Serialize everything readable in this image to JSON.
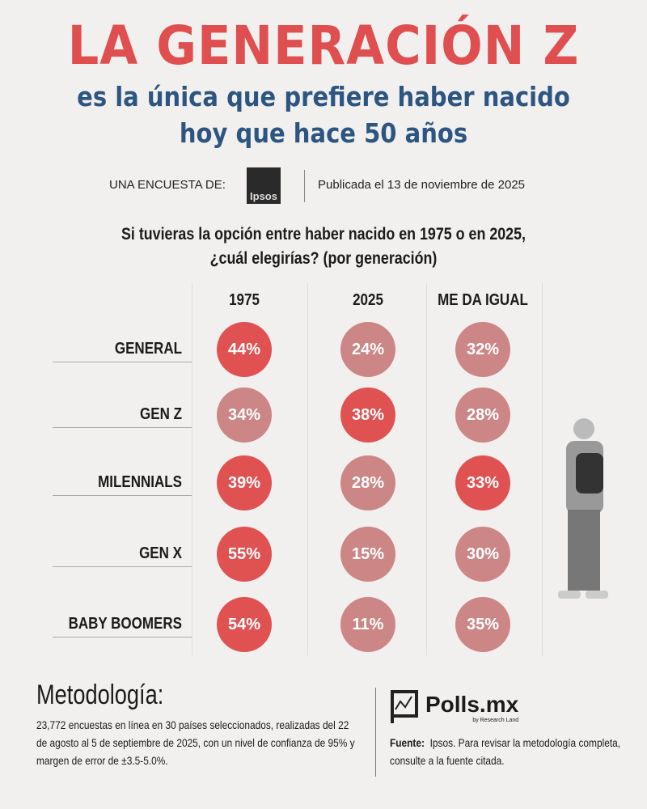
{
  "header": {
    "title": "LA GENERACIÓN Z",
    "subtitle_line1": "es la única que prefiere haber nacido",
    "subtitle_line2": "hoy que hace 50 años",
    "survey_by": "UNA ENCUESTA DE:",
    "survey_logo": "Ipsos",
    "published": "Publicada el 13 de noviembre de 2025"
  },
  "chart_data": {
    "type": "table",
    "title": "Si tuvieras la opción entre haber nacido en 1975 o en 2025, ¿cuál elegirías? (por generación)",
    "title_line1": "Si tuvieras la opción entre haber nacido en 1975 o en 2025,",
    "title_line2": "¿cuál elegirías? (por generación)",
    "columns": [
      "1975",
      "2025",
      "ME DA IGUAL"
    ],
    "rows": [
      {
        "label": "GENERAL",
        "values": [
          "44%",
          "24%",
          "32%"
        ],
        "highlight": [
          true,
          false,
          false
        ]
      },
      {
        "label": "GEN Z",
        "values": [
          "34%",
          "38%",
          "28%"
        ],
        "highlight": [
          false,
          true,
          false
        ]
      },
      {
        "label": "MILENNIALS",
        "values": [
          "39%",
          "28%",
          "33%"
        ],
        "highlight": [
          true,
          false,
          true
        ]
      },
      {
        "label": "GEN X",
        "values": [
          "55%",
          "15%",
          "30%"
        ],
        "highlight": [
          true,
          false,
          false
        ]
      },
      {
        "label": "BABY BOOMERS",
        "values": [
          "54%",
          "11%",
          "35%"
        ],
        "highlight": [
          true,
          false,
          false
        ]
      }
    ],
    "colors": {
      "highlight": "#e05252",
      "muted": "#cd8686"
    }
  },
  "footer": {
    "methodology_title": "Metodología:",
    "methodology_text": "23,772 encuestas en línea en 30 países seleccionados, realizadas del 22 de agosto al 5 de septiembre de 2025, con un nivel de confianza de 95% y margen de error de ±3.5-5.0%.",
    "brand": "Polls.mx",
    "brand_tagline": "by Research Land",
    "source_label": "Fuente:",
    "source_text": "Ipsos. Para revisar la metodología completa, consulte a la fuente citada."
  }
}
